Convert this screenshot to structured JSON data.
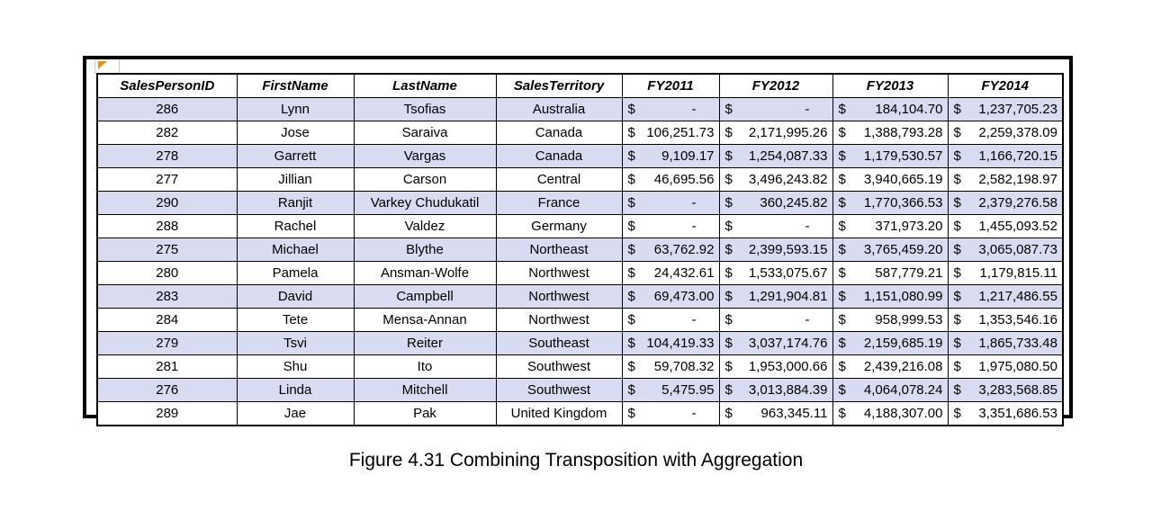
{
  "figure": {
    "caption": "Figure 4.31 Combining Transposition with Aggregation"
  },
  "colors": {
    "row_band": "#d9dbf1",
    "grid": "#000000",
    "artifact_orange": "#e58e1a"
  },
  "table": {
    "currency_symbol": "$",
    "columns": [
      "SalesPersonID",
      "FirstName",
      "LastName",
      "SalesTerritory",
      "FY2011",
      "FY2012",
      "FY2013",
      "FY2014"
    ],
    "rows": [
      {
        "sales_person_id": "286",
        "first_name": "Lynn",
        "last_name": "Tsofias",
        "sales_territory": "Australia",
        "fy2011": "-",
        "fy2012": "-",
        "fy2013": "184,104.70",
        "fy2014": "1,237,705.23"
      },
      {
        "sales_person_id": "282",
        "first_name": "Jose",
        "last_name": "Saraiva",
        "sales_territory": "Canada",
        "fy2011": "106,251.73",
        "fy2012": "2,171,995.26",
        "fy2013": "1,388,793.28",
        "fy2014": "2,259,378.09"
      },
      {
        "sales_person_id": "278",
        "first_name": "Garrett",
        "last_name": "Vargas",
        "sales_territory": "Canada",
        "fy2011": "9,109.17",
        "fy2012": "1,254,087.33",
        "fy2013": "1,179,530.57",
        "fy2014": "1,166,720.15"
      },
      {
        "sales_person_id": "277",
        "first_name": "Jillian",
        "last_name": "Carson",
        "sales_territory": "Central",
        "fy2011": "46,695.56",
        "fy2012": "3,496,243.82",
        "fy2013": "3,940,665.19",
        "fy2014": "2,582,198.97"
      },
      {
        "sales_person_id": "290",
        "first_name": "Ranjit",
        "last_name": "Varkey Chudukatil",
        "sales_territory": "France",
        "fy2011": "-",
        "fy2012": "360,245.82",
        "fy2013": "1,770,366.53",
        "fy2014": "2,379,276.58"
      },
      {
        "sales_person_id": "288",
        "first_name": "Rachel",
        "last_name": "Valdez",
        "sales_territory": "Germany",
        "fy2011": "-",
        "fy2012": "-",
        "fy2013": "371,973.20",
        "fy2014": "1,455,093.52"
      },
      {
        "sales_person_id": "275",
        "first_name": "Michael",
        "last_name": "Blythe",
        "sales_territory": "Northeast",
        "fy2011": "63,762.92",
        "fy2012": "2,399,593.15",
        "fy2013": "3,765,459.20",
        "fy2014": "3,065,087.73"
      },
      {
        "sales_person_id": "280",
        "first_name": "Pamela",
        "last_name": "Ansman-Wolfe",
        "sales_territory": "Northwest",
        "fy2011": "24,432.61",
        "fy2012": "1,533,075.67",
        "fy2013": "587,779.21",
        "fy2014": "1,179,815.11"
      },
      {
        "sales_person_id": "283",
        "first_name": "David",
        "last_name": "Campbell",
        "sales_territory": "Northwest",
        "fy2011": "69,473.00",
        "fy2012": "1,291,904.81",
        "fy2013": "1,151,080.99",
        "fy2014": "1,217,486.55"
      },
      {
        "sales_person_id": "284",
        "first_name": "Tete",
        "last_name": "Mensa-Annan",
        "sales_territory": "Northwest",
        "fy2011": "-",
        "fy2012": "-",
        "fy2013": "958,999.53",
        "fy2014": "1,353,546.16"
      },
      {
        "sales_person_id": "279",
        "first_name": "Tsvi",
        "last_name": "Reiter",
        "sales_territory": "Southeast",
        "fy2011": "104,419.33",
        "fy2012": "3,037,174.76",
        "fy2013": "2,159,685.19",
        "fy2014": "1,865,733.48"
      },
      {
        "sales_person_id": "281",
        "first_name": "Shu",
        "last_name": "Ito",
        "sales_territory": "Southwest",
        "fy2011": "59,708.32",
        "fy2012": "1,953,000.66",
        "fy2013": "2,439,216.08",
        "fy2014": "1,975,080.50"
      },
      {
        "sales_person_id": "276",
        "first_name": "Linda",
        "last_name": "Mitchell",
        "sales_territory": "Southwest",
        "fy2011": "5,475.95",
        "fy2012": "3,013,884.39",
        "fy2013": "4,064,078.24",
        "fy2014": "3,283,568.85"
      },
      {
        "sales_person_id": "289",
        "first_name": "Jae",
        "last_name": "Pak",
        "sales_territory": "United Kingdom",
        "fy2011": "-",
        "fy2012": "963,345.11",
        "fy2013": "4,188,307.00",
        "fy2014": "3,351,686.53"
      }
    ]
  }
}
